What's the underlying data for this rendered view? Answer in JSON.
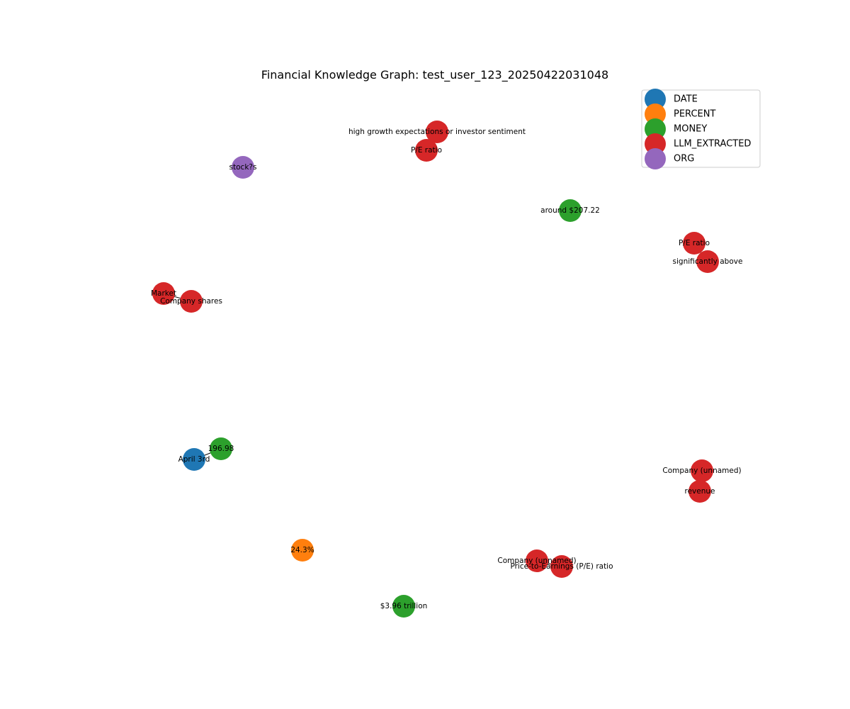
{
  "title": "Financial Knowledge Graph: test_user_123_20250422031048",
  "legend": {
    "placement": "top-right",
    "entries": [
      {
        "label": "DATE",
        "color": "#1f77b4"
      },
      {
        "label": "PERCENT",
        "color": "#ff7f0e"
      },
      {
        "label": "MONEY",
        "color": "#2ca02c"
      },
      {
        "label": "LLM_EXTRACTED",
        "color": "#d62728"
      },
      {
        "label": "ORG",
        "color": "#9467bd"
      }
    ]
  },
  "nodes": [
    {
      "id": "n1",
      "label": "high growth expectations or investor sentiment",
      "type": "LLM_EXTRACTED"
    },
    {
      "id": "n2",
      "label": "P/E ratio",
      "type": "LLM_EXTRACTED"
    },
    {
      "id": "n3",
      "label": "stock?s",
      "type": "ORG"
    },
    {
      "id": "n4",
      "label": "around $207.22",
      "type": "MONEY"
    },
    {
      "id": "n5",
      "label": "P/E ratio",
      "type": "LLM_EXTRACTED"
    },
    {
      "id": "n6",
      "label": "significantly above",
      "type": "LLM_EXTRACTED"
    },
    {
      "id": "n7",
      "label": "Market",
      "type": "LLM_EXTRACTED"
    },
    {
      "id": "n8",
      "label": "Company shares",
      "type": "LLM_EXTRACTED"
    },
    {
      "id": "n9",
      "label": "196.98",
      "type": "MONEY"
    },
    {
      "id": "n10",
      "label": "April 3rd",
      "type": "DATE"
    },
    {
      "id": "n11",
      "label": "Company (unnamed)",
      "type": "LLM_EXTRACTED"
    },
    {
      "id": "n12",
      "label": "revenue",
      "type": "LLM_EXTRACTED"
    },
    {
      "id": "n13",
      "label": "24.3%",
      "type": "PERCENT"
    },
    {
      "id": "n14",
      "label": "Company (unnamed)",
      "type": "LLM_EXTRACTED"
    },
    {
      "id": "n15",
      "label": "Price-to-Earnings (P/E) ratio",
      "type": "LLM_EXTRACTED"
    },
    {
      "id": "n16",
      "label": "$3.96 trillion",
      "type": "MONEY"
    }
  ],
  "edges": [
    {
      "source": "n1",
      "target": "n2"
    },
    {
      "source": "n5",
      "target": "n6"
    },
    {
      "source": "n7",
      "target": "n8"
    },
    {
      "source": "n9",
      "target": "n10"
    },
    {
      "source": "n11",
      "target": "n12"
    },
    {
      "source": "n14",
      "target": "n15"
    }
  ]
}
